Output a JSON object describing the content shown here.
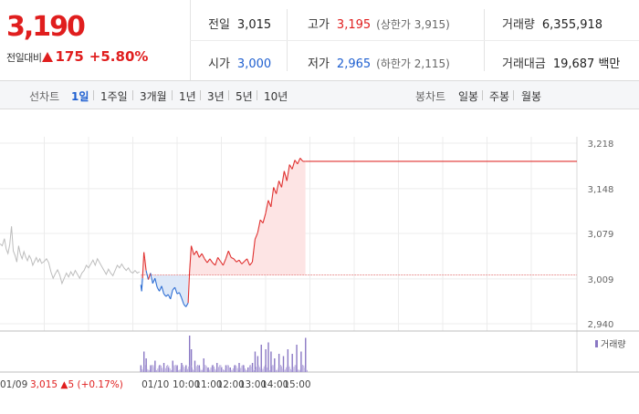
{
  "quote": {
    "price": "3,190",
    "change_label": "전일대비",
    "change_value": "175",
    "change_pct": "+5.80%"
  },
  "info": {
    "prev_close_label": "전일",
    "prev_close": "3,015",
    "high_label": "고가",
    "high": "3,195",
    "upper_limit": "(상한가 3,915)",
    "volume_label": "거래량",
    "volume": "6,355,918",
    "open_label": "시가",
    "open": "3,000",
    "low_label": "저가",
    "low": "2,965",
    "lower_limit": "(하한가 2,115)",
    "trade_value_label": "거래대금",
    "trade_value": "19,687 백만"
  },
  "toolbar": {
    "line_chart_label": "선차트",
    "line_periods": [
      "1일",
      "1주일",
      "3개월",
      "1년",
      "3년",
      "5년",
      "10년"
    ],
    "active_period": "1일",
    "candle_chart_label": "봉차트",
    "candle_periods": [
      "일봉",
      "주봉",
      "월봉"
    ]
  },
  "chart_data": {
    "type": "line",
    "title": "",
    "xlabel": "",
    "ylabel": "",
    "ylim": [
      2940,
      3218
    ],
    "y_ticks": [
      "3,218",
      "3,148",
      "3,079",
      "3,009",
      "2,940"
    ],
    "x_ticks": [
      "01/09",
      "01/10",
      "10:00",
      "11:00",
      "12:00",
      "13:00",
      "14:00",
      "15:00"
    ],
    "reference_price": 3015,
    "prev_day_note": "01/09  3,015 ▲5 (+0.17%)",
    "volume_legend": "거래량",
    "prev_day_series": [
      [
        0,
        3063
      ],
      [
        0.05,
        3060
      ],
      [
        0.1,
        3071
      ],
      [
        0.14,
        3055
      ],
      [
        0.18,
        3048
      ],
      [
        0.22,
        3062
      ],
      [
        0.26,
        3090
      ],
      [
        0.3,
        3052
      ],
      [
        0.34,
        3045
      ],
      [
        0.38,
        3035
      ],
      [
        0.42,
        3060
      ],
      [
        0.46,
        3047
      ],
      [
        0.5,
        3040
      ],
      [
        0.54,
        3051
      ],
      [
        0.58,
        3043
      ],
      [
        0.62,
        3037
      ],
      [
        0.66,
        3045
      ],
      [
        0.7,
        3040
      ],
      [
        0.74,
        3030
      ],
      [
        0.78,
        3036
      ],
      [
        0.82,
        3042
      ],
      [
        0.86,
        3035
      ],
      [
        0.9,
        3040
      ],
      [
        0.94,
        3033
      ],
      [
        1,
        3036
      ],
      [
        1.05,
        3040
      ],
      [
        1.1,
        3034
      ],
      [
        1.15,
        3020
      ],
      [
        1.2,
        3010
      ],
      [
        1.25,
        3017
      ],
      [
        1.3,
        3023
      ],
      [
        1.35,
        3015
      ],
      [
        1.4,
        3002
      ],
      [
        1.45,
        3010
      ],
      [
        1.5,
        3018
      ],
      [
        1.55,
        3012
      ],
      [
        1.6,
        3020
      ],
      [
        1.65,
        3014
      ],
      [
        1.7,
        3022
      ],
      [
        1.75,
        3016
      ],
      [
        1.8,
        3010
      ],
      [
        1.85,
        3018
      ],
      [
        1.9,
        3022
      ],
      [
        1.95,
        3030
      ],
      [
        2,
        3026
      ],
      [
        2.05,
        3032
      ],
      [
        2.1,
        3038
      ],
      [
        2.15,
        3030
      ],
      [
        2.2,
        3040
      ],
      [
        2.25,
        3034
      ],
      [
        2.3,
        3028
      ],
      [
        2.35,
        3022
      ],
      [
        2.4,
        3016
      ],
      [
        2.45,
        3024
      ],
      [
        2.5,
        3018
      ],
      [
        2.55,
        3014
      ],
      [
        2.6,
        3022
      ],
      [
        2.65,
        3030
      ],
      [
        2.7,
        3026
      ],
      [
        2.75,
        3032
      ],
      [
        2.8,
        3026
      ],
      [
        2.85,
        3022
      ],
      [
        2.9,
        3026
      ],
      [
        2.95,
        3020
      ],
      [
        3,
        3018
      ],
      [
        3.05,
        3022
      ],
      [
        3.1,
        3018
      ],
      [
        3.15,
        3020
      ]
    ],
    "today_series": [
      [
        3.18,
        3000
      ],
      [
        3.2,
        2990
      ],
      [
        3.22,
        3010
      ],
      [
        3.25,
        3050
      ],
      [
        3.27,
        3040
      ],
      [
        3.3,
        3022
      ],
      [
        3.35,
        3008
      ],
      [
        3.4,
        3018
      ],
      [
        3.45,
        3002
      ],
      [
        3.5,
        3010
      ],
      [
        3.55,
        2996
      ],
      [
        3.6,
        2990
      ],
      [
        3.65,
        2998
      ],
      [
        3.7,
        2986
      ],
      [
        3.75,
        2982
      ],
      [
        3.8,
        2985
      ],
      [
        3.85,
        2978
      ],
      [
        3.9,
        2992
      ],
      [
        3.95,
        2996
      ],
      [
        4,
        2986
      ],
      [
        4.05,
        2988
      ],
      [
        4.1,
        2980
      ],
      [
        4.15,
        2970
      ],
      [
        4.2,
        2966
      ],
      [
        4.25,
        2972
      ],
      [
        4.28,
        3018
      ],
      [
        4.32,
        3060
      ],
      [
        4.38,
        3046
      ],
      [
        4.44,
        3052
      ],
      [
        4.5,
        3042
      ],
      [
        4.56,
        3048
      ],
      [
        4.62,
        3040
      ],
      [
        4.68,
        3034
      ],
      [
        4.74,
        3040
      ],
      [
        4.8,
        3034
      ],
      [
        4.86,
        3030
      ],
      [
        4.92,
        3042
      ],
      [
        4.98,
        3036
      ],
      [
        5.04,
        3030
      ],
      [
        5.1,
        3040
      ],
      [
        5.16,
        3052
      ],
      [
        5.22,
        3042
      ],
      [
        5.28,
        3040
      ],
      [
        5.34,
        3035
      ],
      [
        5.4,
        3038
      ],
      [
        5.46,
        3032
      ],
      [
        5.52,
        3036
      ],
      [
        5.58,
        3040
      ],
      [
        5.64,
        3030
      ],
      [
        5.7,
        3035
      ],
      [
        5.76,
        3070
      ],
      [
        5.82,
        3080
      ],
      [
        5.88,
        3100
      ],
      [
        5.94,
        3095
      ],
      [
        6,
        3110
      ],
      [
        6.06,
        3130
      ],
      [
        6.12,
        3120
      ],
      [
        6.18,
        3150
      ],
      [
        6.24,
        3140
      ],
      [
        6.3,
        3160
      ],
      [
        6.36,
        3150
      ],
      [
        6.42,
        3175
      ],
      [
        6.48,
        3160
      ],
      [
        6.54,
        3185
      ],
      [
        6.6,
        3178
      ],
      [
        6.66,
        3192
      ],
      [
        6.72,
        3186
      ],
      [
        6.78,
        3195
      ],
      [
        6.84,
        3190
      ],
      [
        6.9,
        3190
      ]
    ],
    "volume_series": [
      [
        3.18,
        3
      ],
      [
        3.25,
        9
      ],
      [
        3.3,
        6
      ],
      [
        3.4,
        3
      ],
      [
        3.5,
        5
      ],
      [
        3.6,
        3
      ],
      [
        3.7,
        4
      ],
      [
        3.8,
        2
      ],
      [
        3.9,
        5
      ],
      [
        4,
        3
      ],
      [
        4.1,
        4
      ],
      [
        4.2,
        3
      ],
      [
        4.28,
        16
      ],
      [
        4.32,
        10
      ],
      [
        4.4,
        5
      ],
      [
        4.5,
        3
      ],
      [
        4.6,
        6
      ],
      [
        4.7,
        2
      ],
      [
        4.8,
        3
      ],
      [
        4.9,
        4
      ],
      [
        5,
        2
      ],
      [
        5.1,
        3
      ],
      [
        5.2,
        2
      ],
      [
        5.3,
        3
      ],
      [
        5.4,
        4
      ],
      [
        5.5,
        3
      ],
      [
        5.6,
        2
      ],
      [
        5.7,
        4
      ],
      [
        5.76,
        9
      ],
      [
        5.82,
        7
      ],
      [
        5.9,
        12
      ],
      [
        6,
        10
      ],
      [
        6.06,
        13
      ],
      [
        6.12,
        9
      ],
      [
        6.2,
        6
      ],
      [
        6.3,
        8
      ],
      [
        6.4,
        7
      ],
      [
        6.5,
        10
      ],
      [
        6.6,
        8
      ],
      [
        6.7,
        12
      ],
      [
        6.8,
        9
      ],
      [
        6.9,
        15
      ]
    ]
  }
}
